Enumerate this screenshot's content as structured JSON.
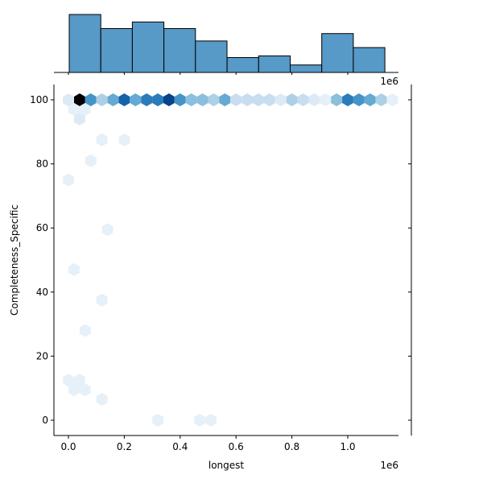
{
  "chart_data": {
    "type": "hexbin-jointplot",
    "title": "",
    "xlabel": "longest",
    "ylabel": "Completeness_Specific",
    "x_offset_text": "1e6",
    "marginal_offset_text": "1e6",
    "xlim": [
      -55000,
      1185000
    ],
    "ylim": [
      -5,
      105
    ],
    "x_ticks": [
      0.0,
      0.2,
      0.4,
      0.6,
      0.8,
      1.0
    ],
    "x_tick_labels": [
      "0.0",
      "0.2",
      "0.4",
      "0.6",
      "0.8",
      "1.0"
    ],
    "y_ticks": [
      0,
      20,
      40,
      60,
      80,
      100
    ],
    "y_tick_labels": [
      "0",
      "20",
      "40",
      "60",
      "80",
      "100"
    ],
    "colormap": "Blues",
    "hexbins": [
      {
        "x": 0,
        "y": 100,
        "count": 1
      },
      {
        "x": 40000,
        "y": 100,
        "count": 10
      },
      {
        "x": 80000,
        "y": 100,
        "count": 6
      },
      {
        "x": 120000,
        "y": 100,
        "count": 3
      },
      {
        "x": 160000,
        "y": 100,
        "count": 5
      },
      {
        "x": 200000,
        "y": 100,
        "count": 8
      },
      {
        "x": 240000,
        "y": 100,
        "count": 5
      },
      {
        "x": 280000,
        "y": 100,
        "count": 7
      },
      {
        "x": 320000,
        "y": 100,
        "count": 7
      },
      {
        "x": 360000,
        "y": 100,
        "count": 9
      },
      {
        "x": 400000,
        "y": 100,
        "count": 6
      },
      {
        "x": 440000,
        "y": 100,
        "count": 4
      },
      {
        "x": 480000,
        "y": 100,
        "count": 4
      },
      {
        "x": 520000,
        "y": 100,
        "count": 3
      },
      {
        "x": 560000,
        "y": 100,
        "count": 5
      },
      {
        "x": 600000,
        "y": 100,
        "count": 2
      },
      {
        "x": 640000,
        "y": 100,
        "count": 2
      },
      {
        "x": 680000,
        "y": 100,
        "count": 2
      },
      {
        "x": 720000,
        "y": 100,
        "count": 2
      },
      {
        "x": 760000,
        "y": 100,
        "count": 1
      },
      {
        "x": 800000,
        "y": 100,
        "count": 3
      },
      {
        "x": 840000,
        "y": 100,
        "count": 2
      },
      {
        "x": 880000,
        "y": 100,
        "count": 1
      },
      {
        "x": 920000,
        "y": 100,
        "count": 0.5
      },
      {
        "x": 960000,
        "y": 100,
        "count": 4
      },
      {
        "x": 1000000,
        "y": 100,
        "count": 7
      },
      {
        "x": 1040000,
        "y": 100,
        "count": 6
      },
      {
        "x": 1080000,
        "y": 100,
        "count": 5
      },
      {
        "x": 1120000,
        "y": 100,
        "count": 3
      },
      {
        "x": 1160000,
        "y": 100,
        "count": 0.5
      },
      {
        "x": 20000,
        "y": 97,
        "count": 0.5
      },
      {
        "x": 60000,
        "y": 97,
        "count": 0.5
      },
      {
        "x": 40000,
        "y": 94,
        "count": 1
      },
      {
        "x": 120000,
        "y": 87.5,
        "count": 0.5
      },
      {
        "x": 200000,
        "y": 87.5,
        "count": 0.5
      },
      {
        "x": 80000,
        "y": 81,
        "count": 0.5
      },
      {
        "x": 0,
        "y": 75,
        "count": 0.5
      },
      {
        "x": 140000,
        "y": 59.5,
        "count": 0.5
      },
      {
        "x": 20000,
        "y": 47,
        "count": 0.5
      },
      {
        "x": 120000,
        "y": 37.5,
        "count": 0.5
      },
      {
        "x": 60000,
        "y": 28,
        "count": 0.5
      },
      {
        "x": 0,
        "y": 12.5,
        "count": 0.5
      },
      {
        "x": 40000,
        "y": 12.5,
        "count": 0.5
      },
      {
        "x": 20000,
        "y": 9.5,
        "count": 0.5
      },
      {
        "x": 60000,
        "y": 9.5,
        "count": 0.5
      },
      {
        "x": 120000,
        "y": 6.5,
        "count": 0.5
      },
      {
        "x": 320000,
        "y": 0,
        "count": 0.5
      },
      {
        "x": 470000,
        "y": 0,
        "count": 0.5
      },
      {
        "x": 510000,
        "y": 0,
        "count": 0.5
      }
    ],
    "marginal_x_histogram": {
      "bin_edges": [
        0,
        113000,
        226000,
        339000,
        452000,
        565000,
        678000,
        791000,
        904000,
        1017000,
        1130000
      ],
      "counts": [
        70,
        53,
        61,
        53,
        38,
        18,
        20,
        9,
        47,
        30
      ],
      "color": "#5799c7",
      "edgecolor": "#000000"
    },
    "marginal_y_histogram": {
      "visible": false
    }
  }
}
